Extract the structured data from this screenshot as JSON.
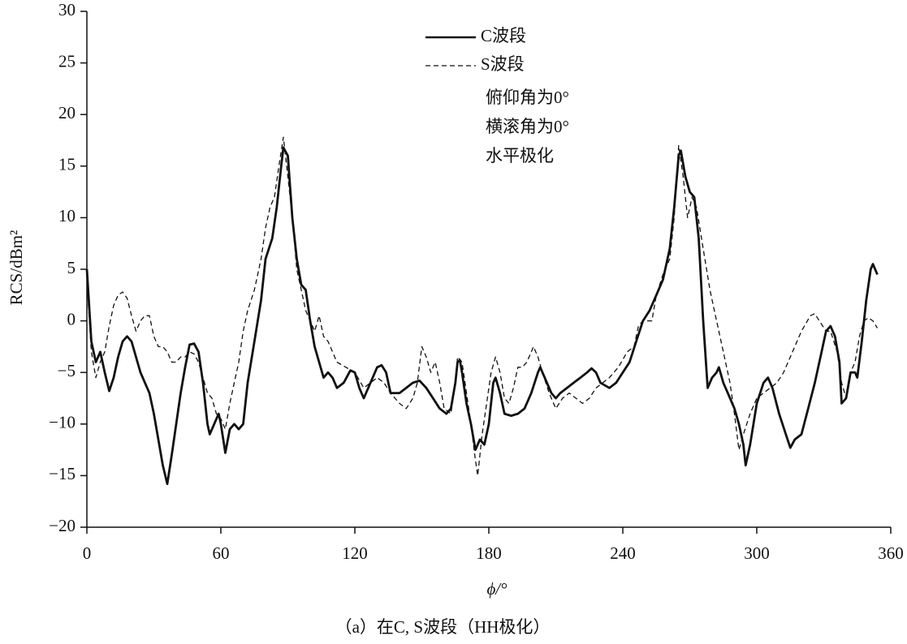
{
  "chart_data": {
    "type": "line",
    "caption": "（a）在C, S波段（HH极化）",
    "xlabel": "ϕ/°",
    "ylabel": "RCS/dBm²",
    "xlim": [
      0,
      360
    ],
    "xticks": [
      0,
      60,
      120,
      180,
      240,
      300,
      360
    ],
    "ylim": [
      -20,
      30
    ],
    "yticks": [
      {
        "value": -20,
        "label": "−20"
      },
      {
        "value": -15,
        "label": "−15"
      },
      {
        "value": -10,
        "label": "−10"
      },
      {
        "value": -5,
        "label": "−5"
      },
      0,
      5,
      10,
      15,
      20,
      25,
      30
    ],
    "annotations": [
      "俯仰角为0°",
      "横滚角为0°",
      "水平极化"
    ],
    "series": [
      {
        "name": "C波段",
        "color": "#111111",
        "dash": "solid",
        "x": [
          0,
          2,
          4,
          6,
          8,
          10,
          12,
          14,
          16,
          18,
          20,
          22,
          24,
          26,
          28,
          30,
          32,
          34,
          36,
          38,
          40,
          42,
          44,
          46,
          48,
          50,
          52,
          54,
          55,
          57,
          59,
          60,
          62,
          64,
          66,
          68,
          70,
          72,
          75,
          78,
          80,
          83,
          85,
          87,
          88,
          90,
          92,
          94,
          96,
          98,
          100,
          102,
          104,
          106,
          108,
          110,
          112,
          115,
          118,
          120,
          122,
          124,
          126,
          128,
          130,
          132,
          134,
          136,
          140,
          143,
          146,
          149,
          152,
          155,
          158,
          161,
          163,
          165,
          166,
          167,
          168,
          170,
          172,
          174,
          176,
          178,
          180,
          182,
          183,
          185,
          187,
          190,
          193,
          196,
          199,
          202,
          203,
          205,
          208,
          210,
          212,
          215,
          218,
          221,
          224,
          226,
          228,
          230,
          234,
          237,
          240,
          243,
          246,
          249,
          252,
          255,
          258,
          261,
          263,
          265,
          266,
          268,
          270,
          272,
          274,
          276,
          278,
          280,
          282,
          283,
          285,
          287,
          290,
          292,
          294,
          295,
          297,
          300,
          303,
          305,
          307,
          310,
          313,
          315,
          317,
          320,
          323,
          326,
          329,
          331,
          333,
          335,
          337,
          338,
          340,
          342,
          344,
          345,
          347,
          349,
          351,
          352,
          354
        ],
        "values": [
          5,
          -2,
          -4,
          -3,
          -5,
          -6.8,
          -5.5,
          -3.5,
          -2,
          -1.5,
          -2,
          -3.5,
          -5,
          -6,
          -7,
          -9,
          -11.5,
          -14,
          -15.8,
          -13,
          -10,
          -7,
          -4.5,
          -2.3,
          -2.2,
          -3,
          -6,
          -10,
          -11,
          -10,
          -9,
          -10,
          -12.8,
          -10.5,
          -10,
          -10.5,
          -10,
          -6,
          -2,
          2,
          6,
          8,
          11,
          15,
          16.8,
          16,
          10,
          6,
          3.5,
          3,
          0,
          -2.5,
          -4,
          -5.5,
          -5,
          -5.5,
          -6.5,
          -6,
          -4.8,
          -5,
          -6.5,
          -7.5,
          -6.5,
          -5.5,
          -4.5,
          -4.3,
          -5,
          -7,
          -7,
          -6.5,
          -6,
          -5.8,
          -6.5,
          -7.5,
          -8.5,
          -9,
          -8.5,
          -6,
          -4,
          -3.8,
          -5,
          -8,
          -10,
          -12.5,
          -11.5,
          -12,
          -10,
          -6,
          -5.5,
          -7,
          -9,
          -9.2,
          -9,
          -8.5,
          -7,
          -5,
          -4.5,
          -5.5,
          -7,
          -7.5,
          -7,
          -6.5,
          -6,
          -5.5,
          -5,
          -4.6,
          -5,
          -6,
          -6.5,
          -6,
          -5,
          -4,
          -2,
          0,
          1,
          2.5,
          4,
          7,
          11,
          16,
          16.5,
          14,
          12.5,
          12,
          8,
          0,
          -6.5,
          -5.5,
          -5,
          -4.5,
          -6,
          -7,
          -8.5,
          -10,
          -12,
          -14,
          -12,
          -8,
          -6,
          -5.5,
          -6.5,
          -9,
          -11,
          -12.3,
          -11.5,
          -11,
          -8.5,
          -6,
          -3,
          -1,
          -0.5,
          -1.5,
          -4,
          -8,
          -7.5,
          -5,
          -5,
          -5.5,
          -2,
          2,
          5,
          5.5,
          4.5
        ]
      },
      {
        "name": "S波段",
        "color": "#111111",
        "dash": "dashed",
        "x": [
          0,
          2,
          4,
          6,
          8,
          10,
          12,
          14,
          16,
          18,
          20,
          22,
          24,
          26,
          28,
          30,
          32,
          34,
          36,
          38,
          40,
          42,
          44,
          46,
          48,
          50,
          52,
          54,
          56,
          58,
          60,
          62,
          64,
          66,
          68,
          70,
          72,
          75,
          78,
          80,
          82,
          84,
          86,
          88,
          90,
          92,
          94,
          96,
          98,
          100,
          102,
          104,
          106,
          108,
          110,
          112,
          116,
          120,
          124,
          127,
          130,
          133,
          136,
          140,
          143,
          146,
          148,
          150,
          152,
          154,
          156,
          158,
          160,
          163,
          165,
          166,
          168,
          170,
          172,
          174,
          175,
          177,
          179,
          181,
          183,
          185,
          187,
          189,
          191,
          193,
          195,
          197,
          199,
          200,
          202,
          204,
          207,
          210,
          213,
          216,
          219,
          222,
          225,
          228,
          231,
          234,
          238,
          242,
          245,
          247,
          249,
          251,
          253,
          255,
          258,
          261,
          263,
          265,
          267,
          269,
          271,
          273,
          276,
          279,
          282,
          285,
          288,
          290,
          292,
          294,
          297,
          300,
          303,
          306,
          309,
          312,
          316,
          320,
          324,
          326,
          328,
          331,
          333,
          336,
          338,
          340,
          342,
          344,
          346,
          348,
          350,
          352,
          354
        ],
        "values": [
          4,
          -3,
          -5.5,
          -4,
          -3,
          -0.5,
          1.5,
          2.5,
          2.8,
          2.2,
          0.5,
          -1,
          0,
          0.5,
          0.5,
          -1.5,
          -2.5,
          -2.5,
          -3,
          -4,
          -4,
          -3.5,
          -3.5,
          -3,
          -3.2,
          -4,
          -5.5,
          -7,
          -7.5,
          -9,
          -9.5,
          -10.5,
          -8,
          -6,
          -4,
          -1,
          1,
          3,
          6,
          9,
          11,
          12,
          15,
          17.8,
          14,
          10,
          5,
          3,
          1,
          0,
          -1,
          0.5,
          -1.5,
          -2,
          -3,
          -4,
          -4.5,
          -5,
          -6.5,
          -6,
          -5.5,
          -6,
          -7,
          -8,
          -8.5,
          -7.5,
          -6,
          -2.5,
          -3.5,
          -5,
          -4,
          -6,
          -8.5,
          -9,
          -6,
          -3.5,
          -4,
          -7,
          -10,
          -13.5,
          -15,
          -11,
          -8,
          -5,
          -3.5,
          -5,
          -7.5,
          -8,
          -6.5,
          -4.5,
          -4.5,
          -4,
          -3,
          -2.5,
          -3.5,
          -5,
          -7,
          -8.5,
          -7.5,
          -7,
          -7.5,
          -8,
          -7.5,
          -6.5,
          -6,
          -5.5,
          -4.5,
          -3,
          -2.5,
          -0.5,
          0,
          0,
          0,
          2.5,
          4.5,
          6,
          10,
          17,
          14,
          10,
          12,
          11,
          7,
          3,
          0,
          -3,
          -6,
          -9,
          -12.5,
          -11,
          -9,
          -7.5,
          -7,
          -6.5,
          -6,
          -5,
          -3,
          -1,
          0.5,
          0.7,
          0,
          -1,
          -1,
          -3,
          -6,
          -7.5,
          -5,
          -4,
          -1.5,
          0,
          0.3,
          0,
          -0.7
        ]
      }
    ]
  }
}
